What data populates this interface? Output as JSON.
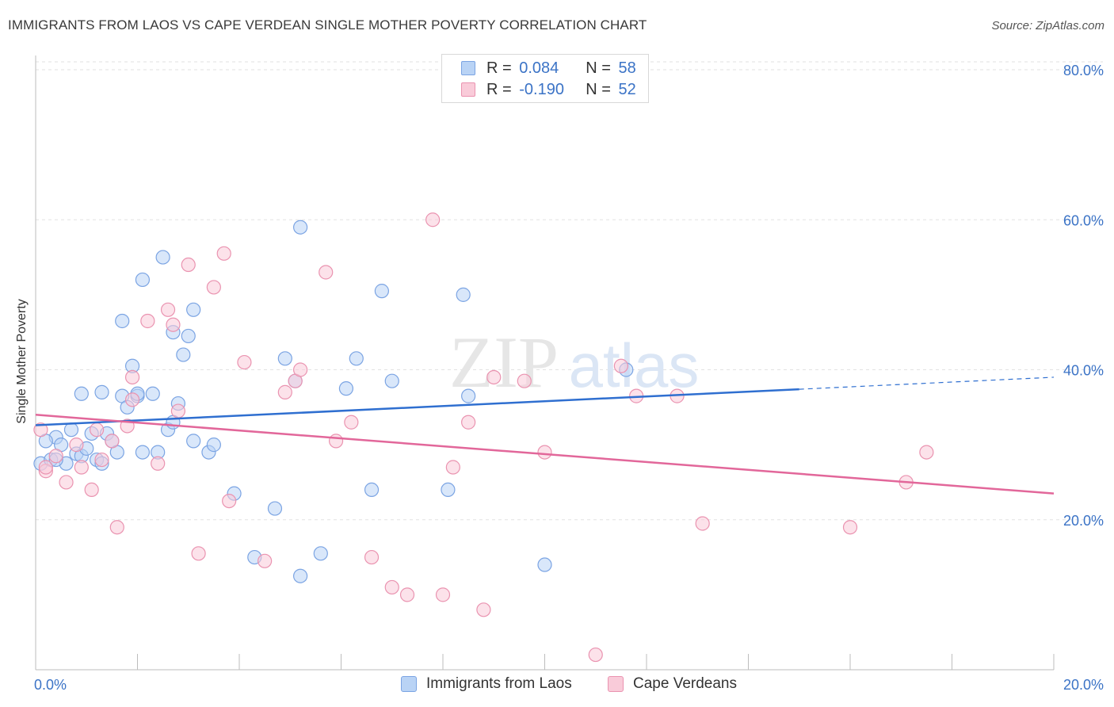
{
  "header": {
    "title": "IMMIGRANTS FROM LAOS VS CAPE VERDEAN SINGLE MOTHER POVERTY CORRELATION CHART",
    "source": "Source: ZipAtlas.com"
  },
  "watermark": {
    "zip": "ZIP",
    "atlas": "atlas"
  },
  "stats_legend": [
    {
      "r_label": "R =",
      "r_value": "0.084",
      "n_label": "N =",
      "n_value": "58",
      "color": "#b9d3f5",
      "border": "#7ba4e3"
    },
    {
      "r_label": "R =",
      "r_value": "-0.190",
      "n_label": "N =",
      "n_value": "52",
      "color": "#f9cbd9",
      "border": "#ea93b0"
    }
  ],
  "bottom_legend": [
    {
      "label": "Immigrants from Laos",
      "color": "#b9d3f5",
      "border": "#7ba4e3"
    },
    {
      "label": "Cape Verdeans",
      "color": "#f9cbd9",
      "border": "#ea93b0"
    }
  ],
  "chart_data": {
    "type": "scatter",
    "title": "IMMIGRANTS FROM LAOS VS CAPE VERDEAN SINGLE MOTHER POVERTY CORRELATION CHART",
    "xlabel": "",
    "ylabel": "Single Mother Poverty",
    "xlim": [
      0,
      20
    ],
    "ylim": [
      0,
      82
    ],
    "x_tick_labels": [
      "0.0%",
      "20.0%"
    ],
    "y_ticks": [
      20,
      40,
      60,
      80
    ],
    "y_tick_labels": [
      "20.0%",
      "40.0%",
      "60.0%",
      "80.0%"
    ],
    "grid": true,
    "legend_position": "top-center",
    "series": [
      {
        "name": "Immigrants from Laos",
        "color": "#7ba4e3",
        "fill": "#b9d3f5",
        "trend": {
          "x": [
            0,
            15
          ],
          "y": [
            32.6,
            37.4
          ],
          "dashed_to_x": 20,
          "dashed_to_y": 39.0,
          "color": "#2f6fd0"
        },
        "points": [
          [
            0.1,
            27.5
          ],
          [
            0.3,
            28.0
          ],
          [
            0.4,
            31.0
          ],
          [
            0.5,
            30.0
          ],
          [
            0.6,
            27.5
          ],
          [
            0.7,
            32.0
          ],
          [
            0.8,
            28.8
          ],
          [
            0.9,
            28.5
          ],
          [
            1.0,
            29.5
          ],
          [
            1.1,
            31.5
          ],
          [
            1.2,
            28.0
          ],
          [
            1.3,
            27.5
          ],
          [
            1.4,
            31.5
          ],
          [
            1.5,
            30.5
          ],
          [
            1.6,
            29.0
          ],
          [
            1.7,
            36.5
          ],
          [
            1.8,
            35.0
          ],
          [
            1.9,
            40.5
          ],
          [
            2.0,
            36.5
          ],
          [
            2.1,
            29.0
          ],
          [
            2.3,
            36.8
          ],
          [
            2.4,
            29.0
          ],
          [
            2.6,
            32.0
          ],
          [
            2.7,
            33.0
          ],
          [
            2.8,
            35.5
          ],
          [
            2.9,
            42.0
          ],
          [
            3.1,
            30.5
          ],
          [
            3.4,
            29.0
          ],
          [
            3.5,
            30.0
          ],
          [
            3.9,
            23.5
          ],
          [
            4.7,
            21.5
          ],
          [
            4.9,
            41.5
          ],
          [
            5.1,
            38.5
          ],
          [
            4.3,
            15.0
          ],
          [
            5.2,
            12.5
          ],
          [
            5.6,
            15.5
          ],
          [
            6.1,
            37.5
          ],
          [
            6.3,
            41.5
          ],
          [
            6.6,
            24.0
          ],
          [
            6.8,
            50.5
          ],
          [
            7.0,
            38.5
          ],
          [
            8.1,
            24.0
          ],
          [
            8.4,
            50.0
          ],
          [
            8.5,
            36.5
          ],
          [
            10.0,
            14.0
          ],
          [
            11.6,
            40.0
          ],
          [
            0.2,
            30.5
          ],
          [
            0.4,
            28.0
          ],
          [
            3.1,
            48.0
          ],
          [
            3.0,
            44.5
          ],
          [
            2.7,
            45.0
          ],
          [
            2.5,
            55.0
          ],
          [
            2.1,
            52.0
          ],
          [
            1.7,
            46.5
          ],
          [
            5.2,
            59.0
          ],
          [
            1.3,
            37.0
          ],
          [
            0.9,
            36.8
          ],
          [
            2.0,
            36.8
          ]
        ]
      },
      {
        "name": "Cape Verdeans",
        "color": "#ea93b0",
        "fill": "#f9cbd9",
        "trend": {
          "x": [
            0,
            20
          ],
          "y": [
            34.0,
            23.5
          ],
          "color": "#e2679a"
        },
        "points": [
          [
            0.1,
            32.0
          ],
          [
            0.2,
            26.5
          ],
          [
            0.4,
            28.5
          ],
          [
            0.6,
            25.0
          ],
          [
            0.8,
            30.0
          ],
          [
            0.9,
            27.0
          ],
          [
            1.1,
            24.0
          ],
          [
            1.3,
            28.0
          ],
          [
            1.5,
            30.5
          ],
          [
            1.6,
            19.0
          ],
          [
            1.8,
            32.5
          ],
          [
            1.9,
            36.0
          ],
          [
            2.2,
            46.5
          ],
          [
            2.4,
            27.5
          ],
          [
            2.6,
            48.0
          ],
          [
            2.8,
            34.5
          ],
          [
            3.0,
            54.0
          ],
          [
            3.2,
            15.5
          ],
          [
            3.5,
            51.0
          ],
          [
            3.7,
            55.5
          ],
          [
            3.8,
            22.5
          ],
          [
            4.1,
            41.0
          ],
          [
            4.5,
            14.5
          ],
          [
            4.9,
            37.0
          ],
          [
            5.1,
            38.5
          ],
          [
            5.2,
            40.0
          ],
          [
            5.7,
            53.0
          ],
          [
            5.9,
            30.5
          ],
          [
            6.2,
            33.0
          ],
          [
            6.6,
            15.0
          ],
          [
            7.0,
            11.0
          ],
          [
            7.3,
            10.0
          ],
          [
            7.8,
            60.0
          ],
          [
            8.0,
            10.0
          ],
          [
            8.2,
            27.0
          ],
          [
            8.5,
            33.0
          ],
          [
            8.8,
            8.0
          ],
          [
            9.0,
            39.0
          ],
          [
            9.6,
            38.5
          ],
          [
            10.0,
            29.0
          ],
          [
            11.0,
            2.0
          ],
          [
            11.5,
            40.5
          ],
          [
            11.8,
            36.5
          ],
          [
            12.6,
            36.5
          ],
          [
            13.1,
            19.5
          ],
          [
            16.0,
            19.0
          ],
          [
            17.1,
            25.0
          ],
          [
            17.5,
            29.0
          ],
          [
            1.9,
            39.0
          ],
          [
            2.7,
            46.0
          ],
          [
            0.2,
            27.0
          ],
          [
            1.2,
            32.0
          ]
        ]
      }
    ]
  }
}
